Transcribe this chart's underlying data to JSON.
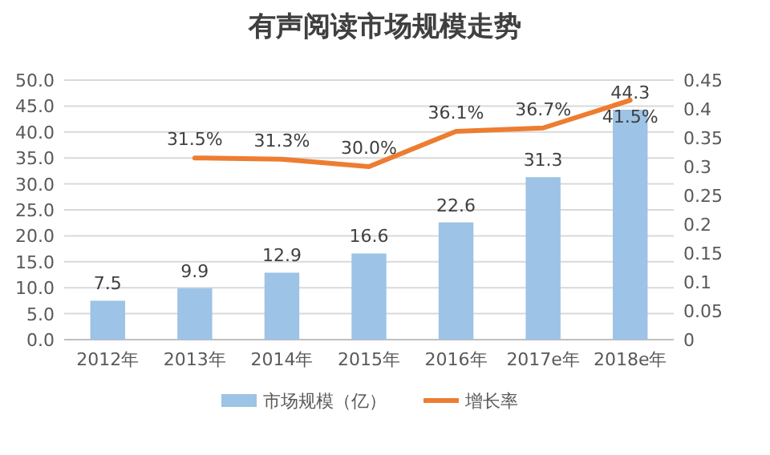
{
  "chart_data": {
    "type": "bar",
    "title": "有声阅读市场规模走势",
    "categories": [
      "2012年",
      "2013年",
      "2014年",
      "2015年",
      "2016年",
      "2017e年",
      "2018e年"
    ],
    "series": [
      {
        "name": "市场规模（亿）",
        "color": "#9dc3e6",
        "values": [
          7.5,
          9.9,
          12.9,
          16.6,
          22.6,
          31.3,
          44.3
        ],
        "value_labels": [
          "7.5",
          "9.9",
          "12.9",
          "16.6",
          "22.6",
          "31.3",
          "44.3"
        ]
      },
      {
        "name": "增长率",
        "type": "line",
        "axis": "y2",
        "color": "#ed7d31",
        "values": [
          null,
          0.315,
          0.313,
          0.3,
          0.361,
          0.367,
          0.415
        ],
        "value_labels": [
          null,
          "31.5%",
          "31.3%",
          "30.0%",
          "36.1%",
          "36.7%",
          "41.5%"
        ]
      }
    ],
    "ylim": [
      0,
      50
    ],
    "yticks": [
      {
        "value": 0,
        "label": "0.0"
      },
      {
        "value": 5,
        "label": "5.0"
      },
      {
        "value": 10,
        "label": "10.0"
      },
      {
        "value": 15,
        "label": "15.0"
      },
      {
        "value": 20,
        "label": "20.0"
      },
      {
        "value": 25,
        "label": "25.0"
      },
      {
        "value": 30,
        "label": "30.0"
      },
      {
        "value": 35,
        "label": "35.0"
      },
      {
        "value": 40,
        "label": "40.0"
      },
      {
        "value": 45,
        "label": "45.0"
      },
      {
        "value": 50,
        "label": "50.0"
      }
    ],
    "y2lim": [
      0,
      0.45
    ],
    "y2ticks": [
      0,
      0.05,
      0.1,
      0.15,
      0.2,
      0.25,
      0.3,
      0.35,
      0.4,
      0.45
    ],
    "grid": "y",
    "legend": "bottom",
    "marker": "none",
    "line_style": "solid"
  }
}
